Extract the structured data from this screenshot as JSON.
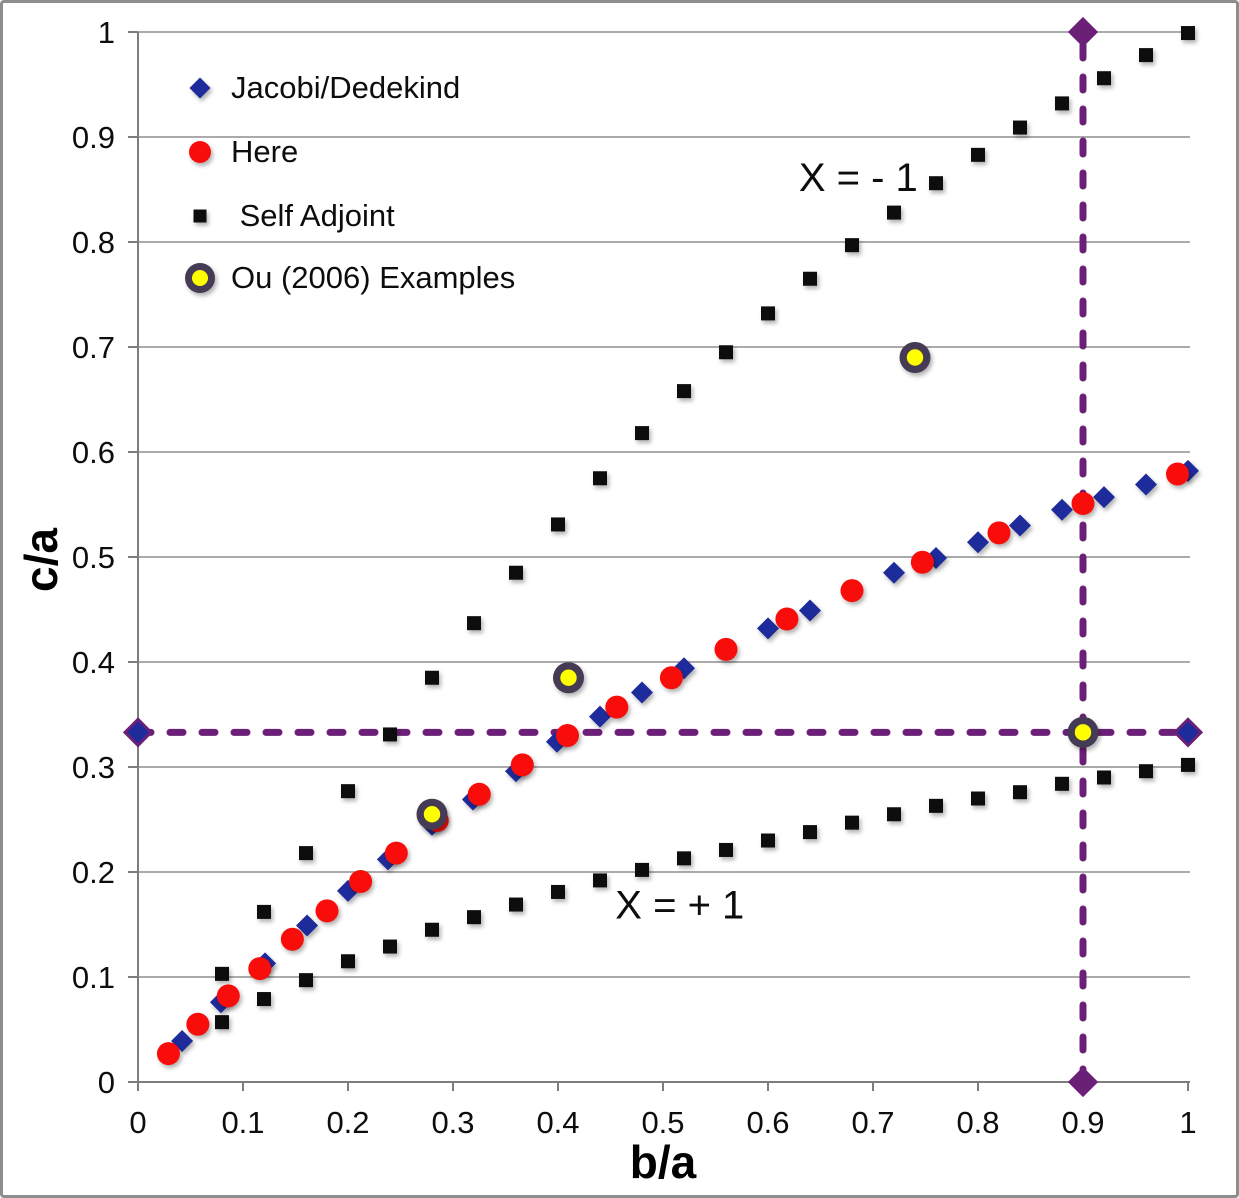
{
  "chart_data": {
    "type": "scatter",
    "title": "",
    "xlabel": "b/a",
    "ylabel": "c/a",
    "xlim": [
      0,
      1
    ],
    "ylim": [
      0,
      1
    ],
    "grid": "horizontal-only",
    "legend_position": "top-left-inside",
    "x_ticks": [
      "0",
      "0.1",
      "0.2",
      "0.3",
      "0.4",
      "0.5",
      "0.6",
      "0.7",
      "0.8",
      "0.9",
      "1"
    ],
    "y_ticks": [
      "0",
      "0.1",
      "0.2",
      "0.3",
      "0.4",
      "0.5",
      "0.6",
      "0.7",
      "0.8",
      "0.9",
      "1"
    ],
    "series": [
      {
        "name": "Self Adjoint (X = - 1 branch)",
        "marker": "square",
        "color": "#0d0d0d",
        "points": [
          [
            0.08,
            0.103
          ],
          [
            0.12,
            0.162
          ],
          [
            0.16,
            0.218
          ],
          [
            0.2,
            0.277
          ],
          [
            0.24,
            0.331
          ],
          [
            0.28,
            0.385
          ],
          [
            0.32,
            0.437
          ],
          [
            0.36,
            0.485
          ],
          [
            0.4,
            0.531
          ],
          [
            0.44,
            0.575
          ],
          [
            0.48,
            0.618
          ],
          [
            0.52,
            0.658
          ],
          [
            0.56,
            0.695
          ],
          [
            0.6,
            0.732
          ],
          [
            0.64,
            0.765
          ],
          [
            0.68,
            0.797
          ],
          [
            0.72,
            0.828
          ],
          [
            0.76,
            0.856
          ],
          [
            0.8,
            0.883
          ],
          [
            0.84,
            0.909
          ],
          [
            0.88,
            0.932
          ],
          [
            0.92,
            0.956
          ],
          [
            0.96,
            0.978
          ],
          [
            1.0,
            0.999
          ]
        ]
      },
      {
        "name": "Self Adjoint (X = + 1 branch)",
        "marker": "square",
        "color": "#0d0d0d",
        "points": [
          [
            0.08,
            0.057
          ],
          [
            0.12,
            0.079
          ],
          [
            0.16,
            0.097
          ],
          [
            0.2,
            0.115
          ],
          [
            0.24,
            0.129
          ],
          [
            0.28,
            0.145
          ],
          [
            0.32,
            0.157
          ],
          [
            0.36,
            0.169
          ],
          [
            0.4,
            0.181
          ],
          [
            0.44,
            0.192
          ],
          [
            0.48,
            0.202
          ],
          [
            0.52,
            0.213
          ],
          [
            0.56,
            0.221
          ],
          [
            0.6,
            0.23
          ],
          [
            0.64,
            0.238
          ],
          [
            0.68,
            0.247
          ],
          [
            0.72,
            0.255
          ],
          [
            0.76,
            0.263
          ],
          [
            0.8,
            0.27
          ],
          [
            0.84,
            0.276
          ],
          [
            0.88,
            0.284
          ],
          [
            0.92,
            0.29
          ],
          [
            0.96,
            0.296
          ],
          [
            1.0,
            0.302
          ]
        ]
      },
      {
        "name": "Jacobi/Dedekind",
        "marker": "diamond",
        "color": "#1e2b9b",
        "points": [
          [
            0.042,
            0.039
          ],
          [
            0.079,
            0.076
          ],
          [
            0.121,
            0.113
          ],
          [
            0.161,
            0.149
          ],
          [
            0.2,
            0.182
          ],
          [
            0.238,
            0.212
          ],
          [
            0.28,
            0.245
          ],
          [
            0.319,
            0.269
          ],
          [
            0.36,
            0.296
          ],
          [
            0.399,
            0.324
          ],
          [
            0.44,
            0.348
          ],
          [
            0.48,
            0.371
          ],
          [
            0.52,
            0.394
          ],
          [
            0.6,
            0.432
          ],
          [
            0.64,
            0.449
          ],
          [
            0.72,
            0.485
          ],
          [
            0.76,
            0.499
          ],
          [
            0.8,
            0.514
          ],
          [
            0.84,
            0.53
          ],
          [
            0.88,
            0.545
          ],
          [
            0.92,
            0.557
          ],
          [
            0.96,
            0.569
          ],
          [
            1.0,
            0.582
          ]
        ]
      },
      {
        "name": "Here",
        "marker": "circle",
        "color": "#f90d0b",
        "points": [
          [
            0.029,
            0.027
          ],
          [
            0.057,
            0.055
          ],
          [
            0.086,
            0.082
          ],
          [
            0.116,
            0.108
          ],
          [
            0.147,
            0.136
          ],
          [
            0.18,
            0.163
          ],
          [
            0.212,
            0.191
          ],
          [
            0.246,
            0.218
          ],
          [
            0.285,
            0.249
          ],
          [
            0.325,
            0.274
          ],
          [
            0.366,
            0.302
          ],
          [
            0.409,
            0.33
          ],
          [
            0.456,
            0.357
          ],
          [
            0.508,
            0.385
          ],
          [
            0.56,
            0.412
          ],
          [
            0.618,
            0.441
          ],
          [
            0.68,
            0.468
          ],
          [
            0.747,
            0.495
          ],
          [
            0.82,
            0.523
          ],
          [
            0.9,
            0.551
          ],
          [
            0.99,
            0.579
          ]
        ]
      },
      {
        "name": "Ou (2006) Examples",
        "marker": "ring-circle",
        "color": "#ffff00",
        "ring_color": "#463b55",
        "points": [
          [
            0.28,
            0.255
          ],
          [
            0.41,
            0.385
          ],
          [
            0.74,
            0.69
          ],
          [
            0.9,
            0.333
          ]
        ]
      }
    ],
    "reference_lines": [
      {
        "orientation": "horizontal",
        "value": 0.333,
        "style": "dashed",
        "color": "#6b2077",
        "end_marker": "diamond",
        "end_marker_fill": "#1e2b9b",
        "end_marker_stroke": "#6b2077"
      },
      {
        "orientation": "vertical",
        "value": 0.9,
        "style": "dashed",
        "color": "#6b2077",
        "end_marker": "diamond",
        "end_marker_fill": "#6b2077",
        "end_marker_stroke": "#6b2077"
      }
    ],
    "annotations": [
      {
        "text": "X = - 1",
        "x": 0.686,
        "y": 0.862
      },
      {
        "text": "X = + 1",
        "x": 0.516,
        "y": 0.169
      }
    ]
  },
  "legend": {
    "items": [
      {
        "label": "Jacobi/Dedekind",
        "marker": "diamond",
        "color": "#1e2b9b"
      },
      {
        "label": "Here",
        "marker": "circle",
        "color": "#f90d0b"
      },
      {
        "label": " Self Adjoint",
        "marker": "square",
        "color": "#0d0d0d"
      },
      {
        "label": "Ou (2006) Examples",
        "marker": "ring-circle",
        "color": "#ffff00",
        "ring_color": "#463b55"
      }
    ]
  },
  "style": {
    "grid_color": "#8f8f8f",
    "axis_color": "#7d7d7d",
    "text_color": "#0d0d0d",
    "background": "#ffffff"
  }
}
